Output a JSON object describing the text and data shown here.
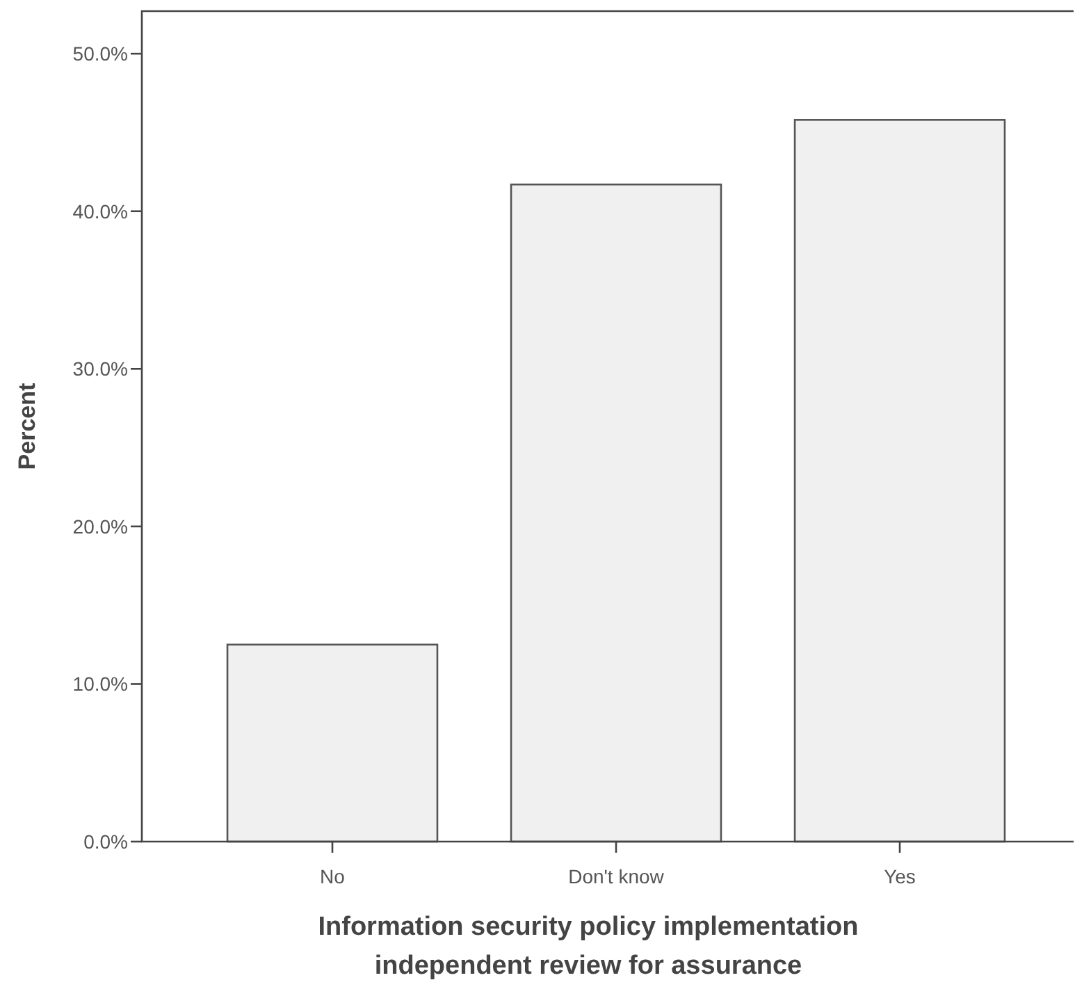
{
  "chart_data": {
    "type": "bar",
    "xlabel": "Information security policy implementation\nindependent review for assurance",
    "ylabel": "Percent",
    "categories": [
      "No",
      "Don't know",
      "Yes"
    ],
    "values": [
      12.5,
      41.7,
      45.8
    ],
    "color": "#f0f0f0",
    "ylim": [
      0,
      52.7
    ],
    "yticks": [
      {
        "value": 0,
        "label": "0.0%"
      },
      {
        "value": 10,
        "label": "10.0%"
      },
      {
        "value": 20,
        "label": "20.0%"
      },
      {
        "value": 30,
        "label": "30.0%"
      },
      {
        "value": 40,
        "label": "40.0%"
      },
      {
        "value": 50,
        "label": "50.0%"
      }
    ],
    "grid": false
  }
}
